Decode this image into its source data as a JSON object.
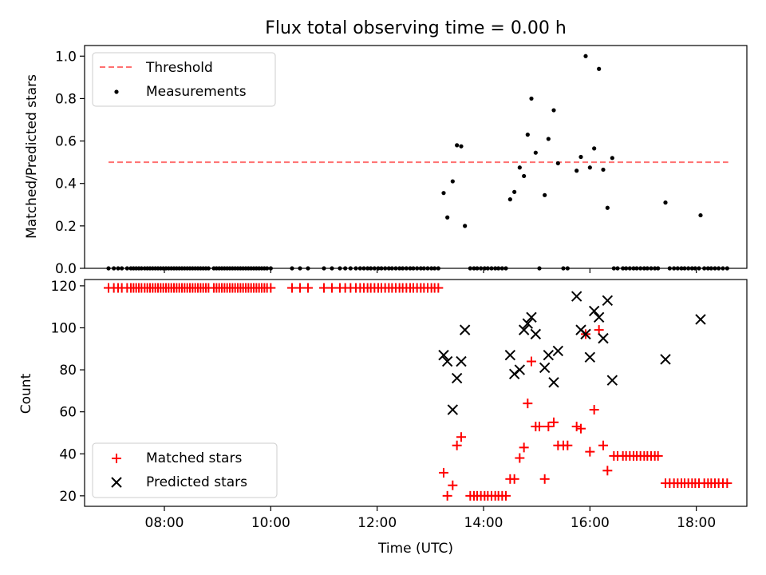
{
  "title": "Flux total observing time = 0.00 h",
  "chart_data": [
    {
      "type": "scatter",
      "ylabel": "Matched/Predicted stars",
      "ylim": [
        0,
        1.05
      ],
      "yticks": [
        0.0,
        0.2,
        0.4,
        0.6,
        0.8,
        1.0
      ],
      "ytick_labels": [
        "0.0",
        "0.2",
        "0.4",
        "0.6",
        "0.8",
        "1.0"
      ],
      "xlim_hours": [
        6.5,
        18.95
      ],
      "legend_position": "top-left",
      "threshold": {
        "name": "Threshold",
        "y": 0.5,
        "x_start": 6.95,
        "x_end": 18.6,
        "color": "#ff7070"
      },
      "measurements": {
        "name": "Measurements",
        "color": "#000000",
        "zero_x": [
          6.95,
          7.05,
          7.13,
          7.2,
          7.3,
          7.37,
          7.42,
          7.47,
          7.52,
          7.57,
          7.63,
          7.68,
          7.73,
          7.78,
          7.83,
          7.88,
          7.93,
          7.98,
          8.03,
          8.08,
          8.13,
          8.18,
          8.23,
          8.28,
          8.33,
          8.38,
          8.43,
          8.48,
          8.53,
          8.58,
          8.63,
          8.68,
          8.73,
          8.78,
          8.83,
          8.93,
          8.98,
          9.03,
          9.08,
          9.13,
          9.18,
          9.23,
          9.28,
          9.33,
          9.38,
          9.43,
          9.48,
          9.53,
          9.58,
          9.63,
          9.68,
          9.73,
          9.78,
          9.83,
          9.88,
          9.93,
          10.0,
          10.4,
          10.55,
          10.7,
          11.0,
          11.15,
          11.3,
          11.4,
          11.5,
          11.6,
          11.68,
          11.75,
          11.82,
          11.88,
          11.95,
          12.02,
          12.08,
          12.15,
          12.22,
          12.28,
          12.35,
          12.42,
          12.48,
          12.55,
          12.62,
          12.68,
          12.75,
          12.82,
          12.88,
          12.95,
          13.02,
          13.08,
          13.15,
          13.75,
          13.82,
          13.88,
          13.95,
          14.02,
          14.08,
          14.15,
          14.22,
          14.28,
          14.35,
          14.42,
          15.05,
          15.5,
          15.58,
          16.45,
          16.52,
          16.62,
          16.68,
          16.75,
          16.82,
          16.88,
          16.95,
          17.02,
          17.08,
          17.15,
          17.22,
          17.28,
          17.5,
          17.58,
          17.65,
          17.72,
          17.78,
          17.85,
          17.92,
          17.98,
          18.05,
          18.15,
          18.22,
          18.28,
          18.35,
          18.42,
          18.5,
          18.58
        ],
        "points": [
          [
            13.25,
            0.355
          ],
          [
            13.32,
            0.24
          ],
          [
            13.42,
            0.41
          ],
          [
            13.5,
            0.58
          ],
          [
            13.58,
            0.575
          ],
          [
            13.65,
            0.2
          ],
          [
            14.5,
            0.325
          ],
          [
            14.58,
            0.36
          ],
          [
            14.68,
            0.475
          ],
          [
            14.76,
            0.435
          ],
          [
            14.83,
            0.63
          ],
          [
            14.9,
            0.8
          ],
          [
            14.98,
            0.545
          ],
          [
            15.15,
            0.345
          ],
          [
            15.22,
            0.61
          ],
          [
            15.32,
            0.745
          ],
          [
            15.4,
            0.495
          ],
          [
            15.75,
            0.46
          ],
          [
            15.83,
            0.525
          ],
          [
            15.92,
            1.0
          ],
          [
            16.0,
            0.475
          ],
          [
            16.08,
            0.565
          ],
          [
            16.17,
            0.94
          ],
          [
            16.25,
            0.465
          ],
          [
            16.33,
            0.285
          ],
          [
            16.42,
            0.52
          ],
          [
            17.42,
            0.31
          ],
          [
            18.08,
            0.25
          ]
        ]
      }
    },
    {
      "type": "scatter",
      "xlabel": "Time (UTC)",
      "ylabel": "Count",
      "ylim": [
        15,
        123
      ],
      "yticks": [
        20,
        40,
        60,
        80,
        100,
        120
      ],
      "ytick_labels": [
        "20",
        "40",
        "60",
        "80",
        "100",
        "120"
      ],
      "xlim_hours": [
        6.5,
        18.95
      ],
      "xticks_hours": [
        8,
        10,
        12,
        14,
        16,
        18
      ],
      "xtick_labels": [
        "08:00",
        "10:00",
        "12:00",
        "14:00",
        "16:00",
        "18:00"
      ],
      "legend_position": "bottom-left",
      "matched": {
        "name": "Matched stars",
        "color": "#ff0000",
        "top_value": 119,
        "top_x": [
          6.95,
          7.05,
          7.13,
          7.2,
          7.3,
          7.37,
          7.42,
          7.47,
          7.52,
          7.57,
          7.63,
          7.68,
          7.73,
          7.78,
          7.83,
          7.88,
          7.93,
          7.98,
          8.03,
          8.08,
          8.13,
          8.18,
          8.23,
          8.28,
          8.33,
          8.38,
          8.43,
          8.48,
          8.53,
          8.58,
          8.63,
          8.68,
          8.73,
          8.78,
          8.83,
          8.93,
          8.98,
          9.03,
          9.08,
          9.13,
          9.18,
          9.23,
          9.28,
          9.33,
          9.38,
          9.43,
          9.48,
          9.53,
          9.58,
          9.63,
          9.68,
          9.73,
          9.78,
          9.83,
          9.88,
          9.93,
          10.0,
          10.4,
          10.55,
          10.7,
          11.0,
          11.15,
          11.3,
          11.4,
          11.5,
          11.6,
          11.68,
          11.75,
          11.82,
          11.88,
          11.95,
          12.02,
          12.08,
          12.15,
          12.22,
          12.28,
          12.35,
          12.42,
          12.48,
          12.55,
          12.62,
          12.68,
          12.75,
          12.82,
          12.88,
          12.95,
          13.02,
          13.08,
          13.15
        ],
        "points": [
          [
            13.25,
            31
          ],
          [
            13.32,
            20
          ],
          [
            13.42,
            25
          ],
          [
            13.5,
            44
          ],
          [
            13.58,
            48
          ],
          [
            13.75,
            20
          ],
          [
            13.82,
            20
          ],
          [
            13.88,
            20
          ],
          [
            13.95,
            20
          ],
          [
            14.02,
            20
          ],
          [
            14.08,
            20
          ],
          [
            14.15,
            20
          ],
          [
            14.22,
            20
          ],
          [
            14.28,
            20
          ],
          [
            14.35,
            20
          ],
          [
            14.42,
            20
          ],
          [
            14.5,
            28
          ],
          [
            14.58,
            28
          ],
          [
            14.68,
            38
          ],
          [
            14.76,
            43
          ],
          [
            14.83,
            64
          ],
          [
            14.9,
            84
          ],
          [
            14.98,
            53
          ],
          [
            15.05,
            53
          ],
          [
            15.15,
            28
          ],
          [
            15.22,
            53
          ],
          [
            15.32,
            55
          ],
          [
            15.4,
            44
          ],
          [
            15.5,
            44
          ],
          [
            15.58,
            44
          ],
          [
            15.75,
            53
          ],
          [
            15.83,
            52
          ],
          [
            15.92,
            97
          ],
          [
            16.0,
            41
          ],
          [
            16.08,
            61
          ],
          [
            16.17,
            99
          ],
          [
            16.25,
            44
          ],
          [
            16.33,
            32
          ],
          [
            16.45,
            39
          ],
          [
            16.52,
            39
          ],
          [
            16.62,
            39
          ],
          [
            16.68,
            39
          ],
          [
            16.75,
            39
          ],
          [
            16.82,
            39
          ],
          [
            16.88,
            39
          ],
          [
            16.95,
            39
          ],
          [
            17.02,
            39
          ],
          [
            17.08,
            39
          ],
          [
            17.15,
            39
          ],
          [
            17.22,
            39
          ],
          [
            17.28,
            39
          ],
          [
            17.42,
            26
          ],
          [
            17.5,
            26
          ],
          [
            17.58,
            26
          ],
          [
            17.65,
            26
          ],
          [
            17.72,
            26
          ],
          [
            17.78,
            26
          ],
          [
            17.85,
            26
          ],
          [
            17.92,
            26
          ],
          [
            17.98,
            26
          ],
          [
            18.05,
            26
          ],
          [
            18.15,
            26
          ],
          [
            18.22,
            26
          ],
          [
            18.28,
            26
          ],
          [
            18.35,
            26
          ],
          [
            18.42,
            26
          ],
          [
            18.5,
            26
          ],
          [
            18.58,
            26
          ]
        ]
      },
      "predicted": {
        "name": "Predicted stars",
        "color": "#000000",
        "points": [
          [
            13.25,
            87
          ],
          [
            13.32,
            84
          ],
          [
            13.42,
            61
          ],
          [
            13.5,
            76
          ],
          [
            13.58,
            84
          ],
          [
            13.65,
            99
          ],
          [
            14.5,
            87
          ],
          [
            14.58,
            78
          ],
          [
            14.68,
            80
          ],
          [
            14.76,
            99
          ],
          [
            14.83,
            102
          ],
          [
            14.9,
            105
          ],
          [
            14.98,
            97
          ],
          [
            15.15,
            81
          ],
          [
            15.22,
            87
          ],
          [
            15.32,
            74
          ],
          [
            15.4,
            89
          ],
          [
            15.75,
            115
          ],
          [
            15.83,
            99
          ],
          [
            15.92,
            97
          ],
          [
            16.0,
            86
          ],
          [
            16.08,
            108
          ],
          [
            16.17,
            105
          ],
          [
            16.25,
            95
          ],
          [
            16.33,
            113
          ],
          [
            16.42,
            75
          ],
          [
            17.42,
            85
          ],
          [
            18.08,
            104
          ]
        ]
      }
    }
  ]
}
